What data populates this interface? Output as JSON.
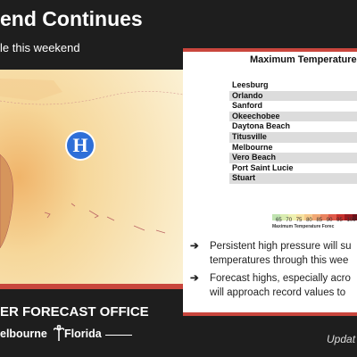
{
  "header": {
    "title": "end Continues",
    "subtitle": "le this weekend"
  },
  "map": {
    "marker": "H"
  },
  "panel": {
    "title": "Maximum Temperature (",
    "rows": [
      "Leesburg",
      "Orlando",
      "Sanford",
      "Okeechobee",
      "Daytona Beach",
      "Titusville",
      "Melbourne",
      "Vero Beach",
      "Port Saint Lucie",
      "Stuart"
    ],
    "legend_ticks": [
      65,
      70,
      75,
      80,
      85,
      90,
      95,
      100
    ],
    "legend_caption": "Maximum Temperature Forec",
    "bullets": [
      [
        "Persistent high pressure will su",
        "temperatures through this wee"
      ],
      [
        "Forecast highs, especially acro",
        "will approach record values to"
      ]
    ]
  },
  "footer": {
    "office": "ER FORECAST OFFICE",
    "city": "elbourne",
    "state": "Florida",
    "updated": "Updat"
  }
}
